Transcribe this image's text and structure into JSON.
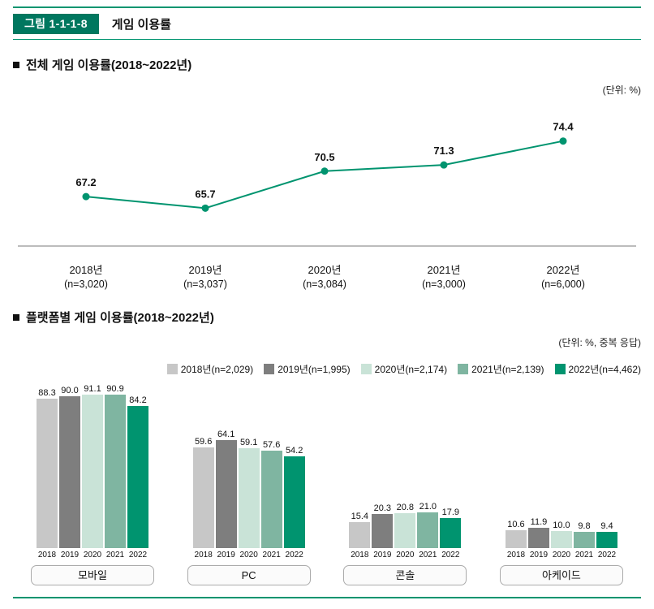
{
  "header": {
    "figure_label": "그림 1-1-1-8",
    "title": "게임 이용률"
  },
  "sections": {
    "overall": {
      "heading": "전체 게임 이용률(2018~2022년)",
      "unit_label": "(단위: %)"
    },
    "platform": {
      "heading": "플랫폼별 게임 이용률(2018~2022년)",
      "unit_label": "(단위: %, 중복 응답)"
    }
  },
  "colors": {
    "brand_teal": "#00946F",
    "header_box": "#00775F",
    "gray_2018": "#C7C7C7",
    "gray_2019": "#7E7E7E",
    "green_2020": "#C9E3D7",
    "green_2021": "#7FB5A1",
    "teal_2022": "#00946F"
  },
  "chart_data": [
    {
      "type": "line",
      "title": "전체 게임 이용률(2018~2022년)",
      "categories": [
        "2018년",
        "2019년",
        "2020년",
        "2021년",
        "2022년"
      ],
      "category_sublabels": [
        "(n=3,020)",
        "(n=3,037)",
        "(n=3,084)",
        "(n=3,000)",
        "(n=6,000)"
      ],
      "values": [
        67.2,
        65.7,
        70.5,
        71.3,
        74.4
      ],
      "unit": "%",
      "ylim": [
        60,
        80
      ],
      "grid": false,
      "line_color": "#00946F"
    },
    {
      "type": "bar",
      "title": "플랫폼별 게임 이용률(2018~2022년)",
      "categories": [
        "모바일",
        "PC",
        "콘솔",
        "아케이드"
      ],
      "years": [
        "2018",
        "2019",
        "2020",
        "2021",
        "2022"
      ],
      "series": [
        {
          "name": "2018년(n=2,029)",
          "color": "#C7C7C7",
          "values": [
            88.3,
            59.6,
            15.4,
            10.6
          ]
        },
        {
          "name": "2019년(n=1,995)",
          "color": "#7E7E7E",
          "values": [
            90.0,
            64.1,
            20.3,
            11.9
          ]
        },
        {
          "name": "2020년(n=2,174)",
          "color": "#C9E3D7",
          "values": [
            91.1,
            59.1,
            20.8,
            10.0
          ]
        },
        {
          "name": "2021년(n=2,139)",
          "color": "#7FB5A1",
          "values": [
            90.9,
            57.6,
            21.0,
            9.8
          ]
        },
        {
          "name": "2022년(n=4,462)",
          "color": "#00946F",
          "values": [
            84.2,
            54.2,
            17.9,
            9.4
          ]
        }
      ],
      "ylim": [
        0,
        100
      ],
      "unit": "%, 중복 응답",
      "legend_position": "top-right",
      "grid": false
    }
  ]
}
